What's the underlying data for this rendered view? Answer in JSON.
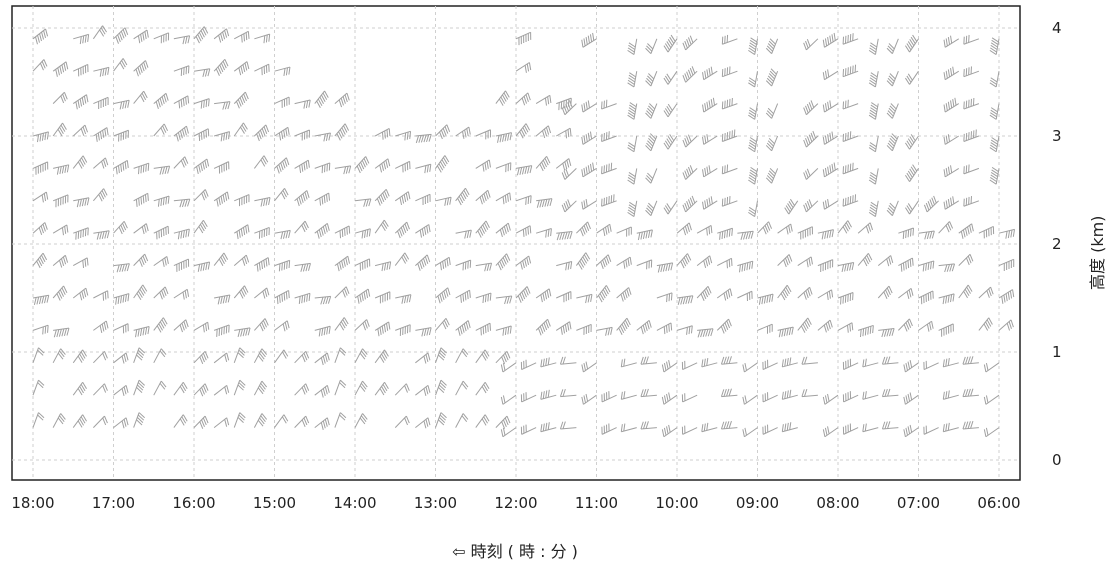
{
  "chart_data": {
    "type": "wind_barbs",
    "xlabel": "⇦ 時刻 ( 時 : 分 )",
    "ylabel": "高度 (km)",
    "x_ticks": [
      "18:00",
      "17:00",
      "16:00",
      "15:00",
      "14:00",
      "13:00",
      "12:00",
      "11:00",
      "10:00",
      "09:00",
      "08:00",
      "07:00",
      "06:00"
    ],
    "y_ticks": [
      "0",
      "1",
      "2",
      "3",
      "4"
    ],
    "ylim": [
      -0.1,
      4.2
    ],
    "x_order": "reversed_time",
    "grid": "dashed",
    "barb_color": "#a0a0a0",
    "time_step_hours": 0.1667,
    "altitudes_km": [
      0.3,
      0.6,
      0.9,
      1.2,
      1.5,
      1.8,
      2.1,
      2.4,
      2.7,
      3.0,
      3.3,
      3.6,
      3.9
    ],
    "speed_levels": [
      1,
      2,
      3,
      4,
      5,
      6
    ]
  }
}
